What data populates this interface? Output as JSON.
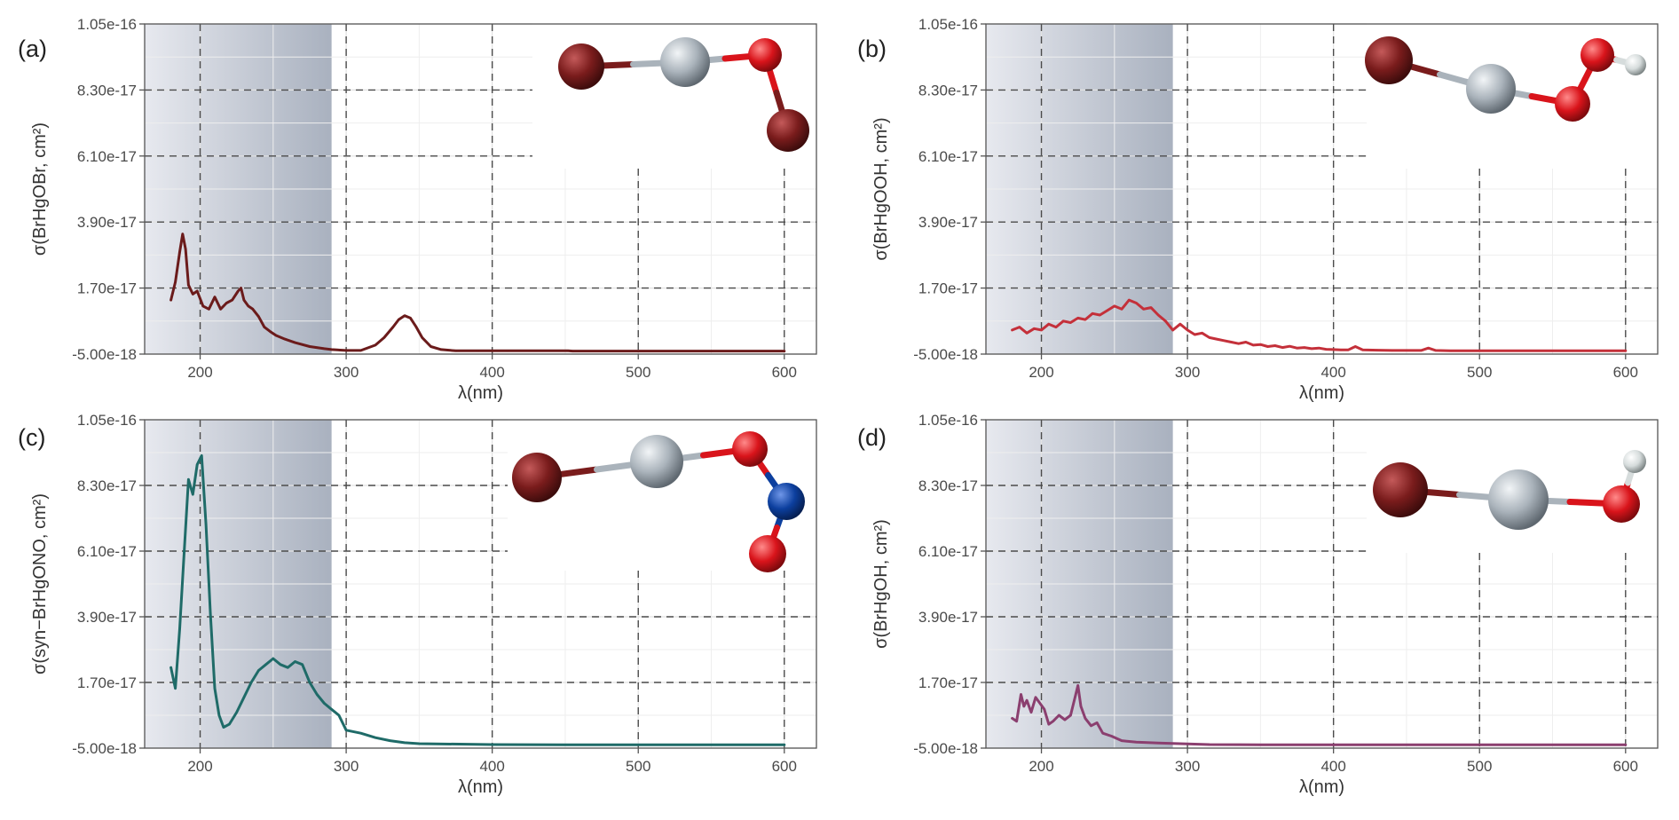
{
  "chart_data": [
    {
      "type": "line",
      "panel_label": "(a)",
      "molecule": "BrHgOBr",
      "ylabel": "σ(BrHgOBr, cm²)",
      "xlabel": "λ(nm)",
      "xlim": [
        162,
        622
      ],
      "ylim": [
        -5e-18,
        1.05e-16
      ],
      "x_ticks": [
        200,
        300,
        400,
        500,
        600
      ],
      "y_ticks": [
        -5e-18,
        1.7e-17,
        3.9e-17,
        6.1e-17,
        8.3e-17,
        1.05e-16
      ],
      "y_tick_labels": [
        "-5.00e-18",
        "1.70e-17",
        "3.90e-17",
        "6.10e-17",
        "8.30e-17",
        "1.05e-16"
      ],
      "shaded_range": [
        162,
        290
      ],
      "grid": true,
      "color": "#6b1b1b",
      "series": [
        {
          "x": [
            180,
            183,
            186,
            188,
            190,
            192,
            195,
            198,
            202,
            206,
            210,
            214,
            218,
            222,
            226,
            228,
            230,
            233,
            236,
            240,
            244,
            248,
            252,
            258,
            265,
            275,
            285,
            290,
            300,
            310,
            320,
            326,
            332,
            336,
            340,
            344,
            348,
            352,
            358,
            365,
            375,
            390,
            410,
            430,
            452,
            455,
            500,
            550,
            600
          ],
          "y": [
            1.3e-17,
            1.9e-17,
            2.9e-17,
            3.5e-17,
            3e-17,
            1.8e-17,
            1.5e-17,
            1.6e-17,
            1.1e-17,
            1e-17,
            1.4e-17,
            1e-17,
            1.2e-17,
            1.3e-17,
            1.6e-17,
            1.7e-17,
            1.3e-17,
            1.1e-17,
            1e-17,
            7.5e-18,
            4e-18,
            2.5e-18,
            1.2e-18,
            0.0,
            -1.2e-18,
            -2.5e-18,
            -3.2e-18,
            -3.5e-18,
            -3.8e-18,
            -3.8e-18,
            -2e-18,
            5e-19,
            4e-18,
            6.5e-18,
            7.8e-18,
            7e-18,
            4e-18,
            5e-19,
            -2.5e-18,
            -3.5e-18,
            -3.9e-18,
            -3.9e-18,
            -3.9e-18,
            -3.9e-18,
            -3.9e-18,
            -4e-18,
            -4e-18,
            -4e-18,
            -4e-18
          ]
        }
      ]
    },
    {
      "type": "line",
      "panel_label": "(b)",
      "molecule": "BrHgOOH",
      "ylabel": "σ(BrHgOOH, cm²)",
      "xlabel": "λ(nm)",
      "xlim": [
        162,
        622
      ],
      "ylim": [
        -5e-18,
        1.05e-16
      ],
      "x_ticks": [
        200,
        300,
        400,
        500,
        600
      ],
      "y_ticks": [
        -5e-18,
        1.7e-17,
        3.9e-17,
        6.1e-17,
        8.3e-17,
        1.05e-16
      ],
      "y_tick_labels": [
        "-5.00e-18",
        "1.70e-17",
        "3.90e-17",
        "6.10e-17",
        "8.30e-17",
        "1.05e-16"
      ],
      "shaded_range": [
        162,
        290
      ],
      "grid": true,
      "color": "#c4303a",
      "series": [
        {
          "x": [
            180,
            185,
            190,
            195,
            200,
            205,
            210,
            215,
            220,
            225,
            230,
            235,
            240,
            245,
            250,
            255,
            260,
            265,
            270,
            275,
            280,
            285,
            290,
            295,
            300,
            305,
            310,
            315,
            320,
            325,
            330,
            335,
            340,
            345,
            350,
            355,
            360,
            365,
            370,
            375,
            380,
            385,
            390,
            395,
            400,
            405,
            410,
            415,
            420,
            430,
            440,
            450,
            460,
            465,
            470,
            480,
            500,
            550,
            600
          ],
          "y": [
            3e-18,
            4e-18,
            2e-18,
            3.5e-18,
            3e-18,
            5e-18,
            4e-18,
            6e-18,
            5.5e-18,
            7e-18,
            6.5e-18,
            8.5e-18,
            8e-18,
            9.5e-18,
            1.1e-17,
            1e-17,
            1.3e-17,
            1.2e-17,
            1e-17,
            1.05e-17,
            8e-18,
            6e-18,
            3e-18,
            5e-18,
            3e-18,
            1.5e-18,
            2e-18,
            5e-19,
            0.0,
            -5e-19,
            -1e-18,
            -1.5e-18,
            -1e-18,
            -2e-18,
            -1.8e-18,
            -2.5e-18,
            -2.2e-18,
            -2.8e-18,
            -2.4e-18,
            -3e-18,
            -2.8e-18,
            -3.2e-18,
            -3e-18,
            -3.4e-18,
            -3.5e-18,
            -3.6e-18,
            -3.6e-18,
            -2.5e-18,
            -3.6e-18,
            -3.7e-18,
            -3.8e-18,
            -3.8e-18,
            -3.8e-18,
            -3e-18,
            -3.8e-18,
            -3.9e-18,
            -3.9e-18,
            -3.9e-18,
            -3.9e-18
          ]
        }
      ]
    },
    {
      "type": "line",
      "panel_label": "(c)",
      "molecule": "syn-BrHgONO",
      "ylabel": "σ(syn−BrHgONO, cm²)",
      "xlabel": "λ(nm)",
      "xlim": [
        162,
        622
      ],
      "ylim": [
        -5e-18,
        1.05e-16
      ],
      "x_ticks": [
        200,
        300,
        400,
        500,
        600
      ],
      "y_ticks": [
        -5e-18,
        1.7e-17,
        3.9e-17,
        6.1e-17,
        8.3e-17,
        1.05e-16
      ],
      "y_tick_labels": [
        "-5.00e-18",
        "1.70e-17",
        "3.90e-17",
        "6.10e-17",
        "8.30e-17",
        "1.05e-16"
      ],
      "shaded_range": [
        162,
        290
      ],
      "grid": true,
      "color": "#1f6b68",
      "series": [
        {
          "x": [
            180,
            183,
            186,
            189,
            192,
            195,
            198,
            201,
            204,
            207,
            210,
            213,
            216,
            220,
            225,
            230,
            235,
            240,
            245,
            250,
            255,
            260,
            265,
            270,
            275,
            280,
            285,
            290,
            295,
            300,
            310,
            320,
            330,
            340,
            350,
            400,
            450,
            500,
            550,
            600
          ],
          "y": [
            2.2e-17,
            1.5e-17,
            3.5e-17,
            6e-17,
            8.5e-17,
            8e-17,
            9e-17,
            9.3e-17,
            7e-17,
            4e-17,
            1.5e-17,
            6e-18,
            2e-18,
            3e-18,
            7e-18,
            1.2e-17,
            1.7e-17,
            2.1e-17,
            2.3e-17,
            2.5e-17,
            2.3e-17,
            2.2e-17,
            2.4e-17,
            2.3e-17,
            1.7e-17,
            1.3e-17,
            1e-17,
            8e-18,
            6e-18,
            1e-18,
            0.0,
            -1.5e-18,
            -2.5e-18,
            -3.2e-18,
            -3.5e-18,
            -3.8e-18,
            -3.9e-18,
            -3.9e-18,
            -3.9e-18,
            -3.9e-18
          ]
        }
      ]
    },
    {
      "type": "line",
      "panel_label": "(d)",
      "molecule": "BrHgOH",
      "ylabel": "σ(BrHgOH, cm²)",
      "xlabel": "λ(nm)",
      "xlim": [
        162,
        622
      ],
      "ylim": [
        -5e-18,
        1.05e-16
      ],
      "x_ticks": [
        200,
        300,
        400,
        500,
        600
      ],
      "y_ticks": [
        -5e-18,
        1.7e-17,
        3.9e-17,
        6.1e-17,
        8.3e-17,
        1.05e-16
      ],
      "y_tick_labels": [
        "-5.00e-18",
        "1.70e-17",
        "3.90e-17",
        "6.10e-17",
        "8.30e-17",
        "1.05e-16"
      ],
      "shaded_range": [
        162,
        290
      ],
      "grid": true,
      "color": "#8b3f6f",
      "series": [
        {
          "x": [
            180,
            183,
            186,
            188,
            190,
            193,
            196,
            199,
            202,
            205,
            208,
            212,
            216,
            220,
            223,
            225,
            227,
            230,
            234,
            238,
            242,
            248,
            255,
            265,
            280,
            300,
            315,
            350,
            400,
            500,
            600
          ],
          "y": [
            5e-18,
            4e-18,
            1.3e-17,
            9e-18,
            1.1e-17,
            7e-18,
            1.2e-17,
            1e-17,
            8e-18,
            3e-18,
            4e-18,
            6e-18,
            4.5e-18,
            6e-18,
            1.2e-17,
            1.6e-17,
            9e-18,
            5e-18,
            2.5e-18,
            3.5e-18,
            0.0,
            -1e-18,
            -2.5e-18,
            -3e-18,
            -3.3e-18,
            -3.6e-18,
            -3.8e-18,
            -3.9e-18,
            -3.9e-18,
            -3.9e-18,
            -3.9e-18
          ]
        }
      ]
    }
  ],
  "molecules": {
    "a": {
      "name": "BrHgOBr",
      "atoms": [
        "Br",
        "Hg",
        "O",
        "Br"
      ]
    },
    "b": {
      "name": "BrHgOOH",
      "atoms": [
        "Br",
        "Hg",
        "O",
        "O",
        "H"
      ]
    },
    "c": {
      "name": "syn-BrHgONO",
      "atoms": [
        "Br",
        "Hg",
        "O",
        "N",
        "O"
      ]
    },
    "d": {
      "name": "BrHgOH",
      "atoms": [
        "Br",
        "Hg",
        "O",
        "H"
      ]
    }
  },
  "colors": {
    "shade_start": "#e7e9ef",
    "shade_end": "#a9b1bf",
    "Br": "#7a1c1c",
    "Hg": "#aab3bb",
    "O": "#d9141b",
    "N": "#0c3f9e",
    "H": "#d6dcdc"
  }
}
